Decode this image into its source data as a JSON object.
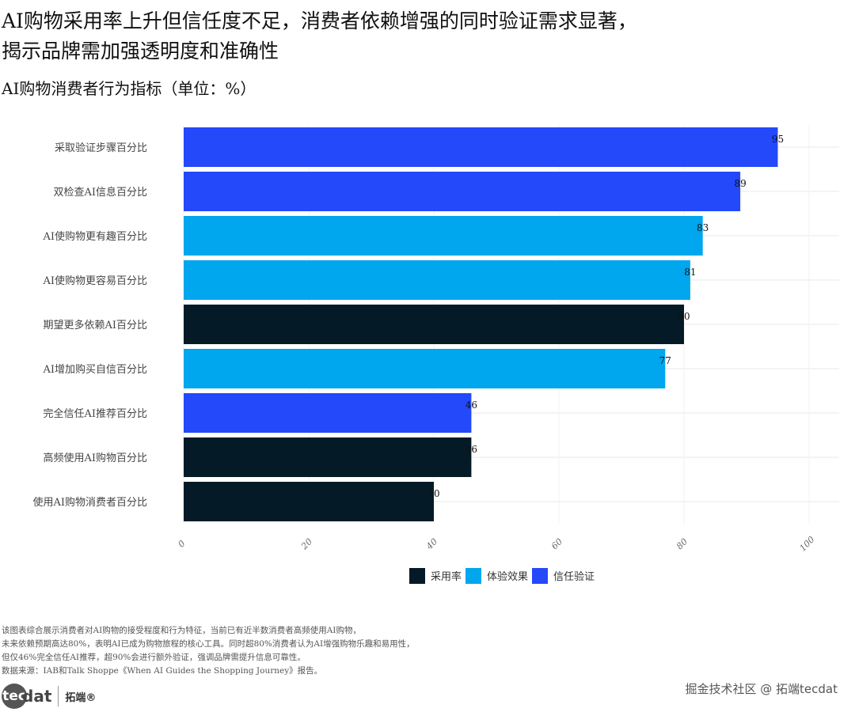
{
  "title_line1": "AI购物采用率上升但信任度不足，消费者依赖增强的同时验证需求显著，",
  "title_line2": "揭示品牌需加强透明度和准确性",
  "notes": [
    "该图表综合展示消费者对AI购物的接受程度和行为特征，当前已有近半数消费者高频使用AI购物，",
    "未来依赖预期高达80%，表明AI已成为购物旅程的核心工具。同时超80%消费者认为AI增强购物乐趣和易用性，",
    "但仅46%完全信任AI推荐，超90%会进行额外验证，强调品牌需提升信息可靠性。",
    "数据来源：IAB和Talk Shoppe《When AI Guides the Shopping Journey》报告。"
  ],
  "logo": {
    "text1": "tec",
    "text2": "dat",
    "text3": "拓端®"
  },
  "watermark": "掘金技术社区 @ 拓端tecdat",
  "chart_data": {
    "type": "bar",
    "orientation": "horizontal",
    "title": "AI购物消费者行为指标（单位：%）",
    "categories": [
      "采取验证步骤百分比",
      "双检查AI信息百分比",
      "AI使购物更有趣百分比",
      "AI使购物更容易百分比",
      "期望更多依赖AI百分比",
      "AI增加购买自信百分比",
      "完全信任AI推荐百分比",
      "高频使用AI购物百分比",
      "使用AI购物消费者百分比"
    ],
    "values": [
      95,
      89,
      83,
      81,
      80,
      77,
      46,
      46,
      40
    ],
    "groups": [
      "信任验证",
      "信任验证",
      "体验效果",
      "体验效果",
      "采用率",
      "体验效果",
      "信任验证",
      "采用率",
      "采用率"
    ],
    "legend": [
      {
        "name": "采用率",
        "color": "#041b27"
      },
      {
        "name": "体验效果",
        "color": "#00a6ee"
      },
      {
        "name": "信任验证",
        "color": "#2349fb"
      }
    ],
    "legend_placement": "bottom",
    "xlim": [
      0,
      100
    ],
    "xticks": [
      0,
      20,
      40,
      60,
      80,
      100
    ],
    "grid": true
  }
}
